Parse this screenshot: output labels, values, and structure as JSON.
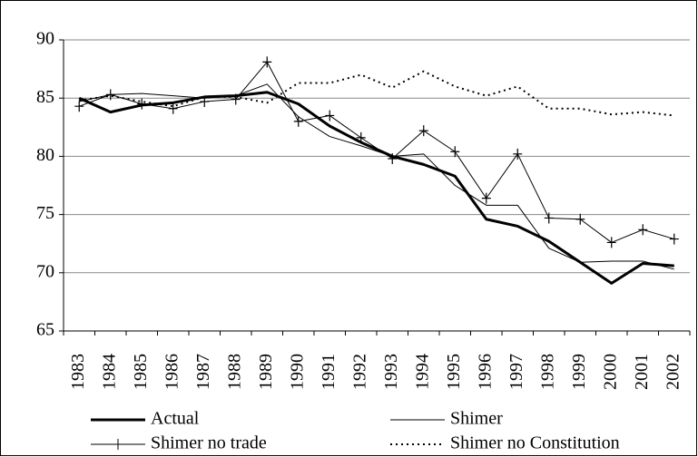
{
  "chart_data": {
    "type": "line",
    "categories": [
      "1983",
      "1984",
      "1985",
      "1986",
      "1987",
      "1988",
      "1989",
      "1990",
      "1991",
      "1992",
      "1993",
      "1994",
      "1995",
      "1996",
      "1997",
      "1998",
      "1999",
      "2000",
      "2001",
      "2002"
    ],
    "series": [
      {
        "name": "Actual",
        "color": "#000000",
        "width": 3,
        "dash": "solid",
        "marker": "none",
        "values": [
          85.0,
          83.8,
          84.4,
          84.6,
          85.1,
          85.2,
          85.5,
          84.5,
          82.6,
          81.2,
          80.0,
          79.3,
          78.3,
          74.6,
          74.0,
          72.7,
          70.9,
          69.1,
          70.8,
          70.6
        ]
      },
      {
        "name": "Shimer",
        "color": "#000000",
        "width": 1,
        "dash": "solid",
        "marker": "none",
        "values": [
          84.7,
          85.3,
          85.4,
          85.2,
          85.0,
          85.2,
          86.2,
          83.4,
          81.7,
          80.9,
          80.0,
          80.2,
          77.5,
          75.8,
          75.8,
          72.1,
          70.9,
          71.0,
          71.0,
          70.3
        ]
      },
      {
        "name": "Shimer no trade",
        "color": "#000000",
        "width": 1,
        "dash": "solid",
        "marker": "plus",
        "values": [
          84.3,
          85.3,
          84.5,
          84.1,
          84.7,
          84.9,
          88.1,
          83.0,
          83.5,
          81.6,
          79.8,
          82.2,
          80.4,
          76.4,
          80.2,
          74.7,
          74.6,
          72.6,
          73.7,
          72.9
        ]
      },
      {
        "name": "Shimer no Constitution",
        "color": "#000000",
        "width": 2,
        "dash": "dotted",
        "marker": "none",
        "values": [
          84.8,
          85.2,
          84.7,
          84.3,
          85.1,
          85.1,
          84.6,
          86.3,
          86.3,
          87.0,
          85.9,
          87.3,
          86.0,
          85.2,
          86.0,
          84.1,
          84.1,
          83.6,
          83.8,
          83.5
        ]
      }
    ],
    "ylim": [
      65,
      90
    ],
    "yticks": [
      65,
      70,
      75,
      80,
      85,
      90
    ],
    "grid": true
  }
}
